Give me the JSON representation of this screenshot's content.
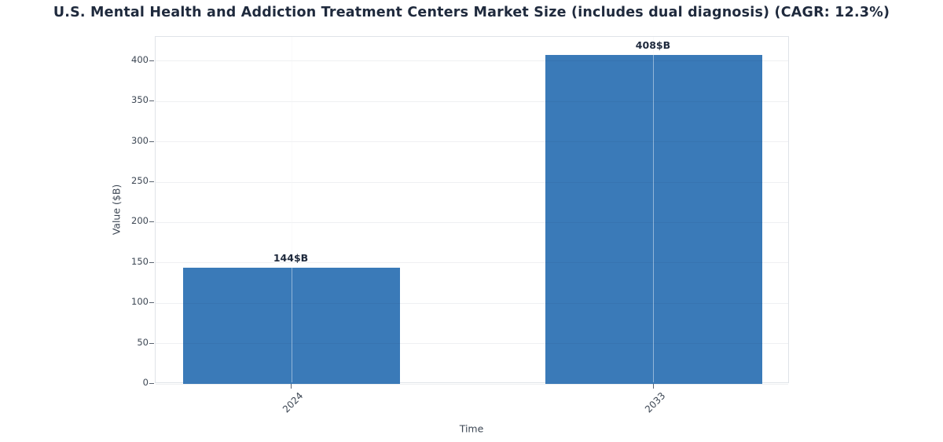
{
  "chart_data": {
    "type": "bar",
    "title": "U.S. Mental Health and Addiction Treatment Centers Market Size (includes dual diagnosis) (CAGR: 12.3%)",
    "categories": [
      "2024",
      "2033"
    ],
    "values": [
      144,
      408
    ],
    "bar_labels": [
      "144$B",
      "408$B"
    ],
    "xlabel": "Time",
    "ylabel": "Value ($B)",
    "ylim": [
      0,
      430
    ],
    "yticks": [
      0,
      50,
      100,
      150,
      200,
      250,
      300,
      350,
      400
    ],
    "grid": true,
    "legend": "none",
    "bar_color": "#3a7ab8",
    "title_color": "#1f2a3d",
    "tick_label_color": "#3d4754",
    "cagr_percent": "12.3%"
  }
}
